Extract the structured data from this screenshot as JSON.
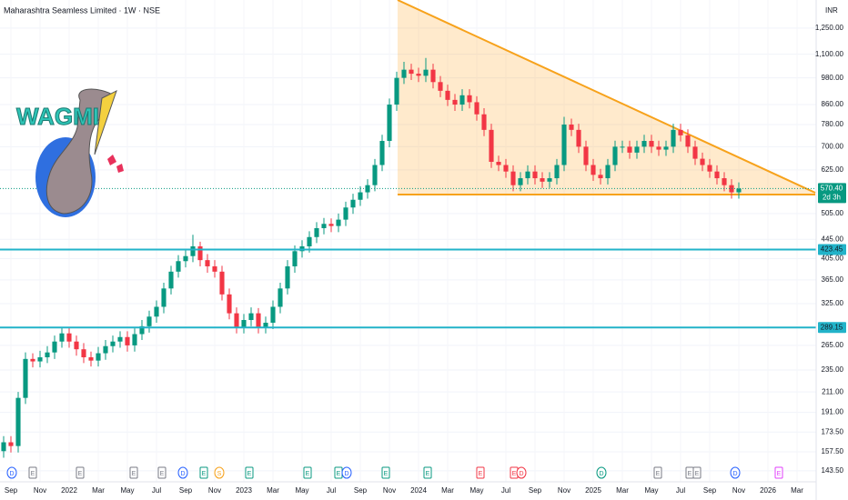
{
  "header": {
    "title": "Maharashtra Seamless Limited · 1W · NSE",
    "currency": "INR"
  },
  "logo": {
    "text": "WAGMI"
  },
  "chart_data": {
    "type": "candlestick",
    "log_scale": true,
    "grid": true,
    "up_color": "#089981",
    "down_color": "#f23645",
    "categories": [
      null,
      "Sep",
      null,
      null,
      null,
      "Nov",
      null,
      null,
      null,
      "2022",
      null,
      null,
      null,
      "Mar",
      null,
      null,
      null,
      "May",
      null,
      null,
      null,
      "Jul",
      null,
      null,
      null,
      "Sep",
      null,
      null,
      null,
      "Nov",
      null,
      null,
      null,
      "2023",
      null,
      null,
      null,
      "Mar",
      null,
      null,
      null,
      "May",
      null,
      null,
      null,
      "Jul",
      null,
      null,
      null,
      "Sep",
      null,
      null,
      null,
      "Nov",
      null,
      null,
      null,
      "2024",
      null,
      null,
      null,
      "Mar",
      null,
      null,
      null,
      "May",
      null,
      null,
      null,
      "Jul",
      null,
      null,
      null,
      "Sep",
      null,
      null,
      null,
      "Nov",
      null,
      null,
      null,
      "2025",
      null,
      null,
      null,
      "Mar",
      null,
      null,
      null,
      "May",
      null,
      null,
      null,
      "Jul",
      null,
      null,
      null,
      "Sep",
      null,
      null,
      null,
      "Nov",
      null,
      null,
      null,
      "2026",
      null,
      null,
      null,
      "Mar",
      null,
      null
    ],
    "open": [
      158,
      165,
      162,
      205,
      248,
      245,
      250,
      256,
      270,
      281,
      270,
      260,
      250,
      246,
      255,
      264,
      270,
      276,
      265,
      280,
      291,
      305,
      320,
      350,
      380,
      400,
      410,
      430,
      402,
      390,
      380,
      340,
      310,
      290,
      300,
      310,
      290,
      296,
      320,
      350,
      390,
      420,
      430,
      450,
      470,
      480,
      475,
      490,
      520,
      540,
      560,
      580,
      640,
      720,
      860,
      980,
      1020,
      1000,
      990,
      1020,
      960,
      920,
      880,
      860,
      900,
      870,
      820,
      760,
      650,
      640,
      620,
      580,
      600,
      620,
      600,
      590,
      600,
      640,
      780,
      760,
      700,
      640,
      610,
      600,
      640,
      700,
      700,
      680,
      700,
      720,
      700,
      690,
      700,
      760,
      740,
      700,
      660,
      640,
      620,
      600,
      580,
      560,
      null,
      null,
      null,
      null,
      null,
      null,
      null,
      null,
      null,
      null
    ],
    "high": [
      170,
      170,
      211,
      256,
      255,
      258,
      264,
      278,
      290,
      289,
      278,
      268,
      257,
      263,
      272,
      278,
      284,
      284,
      288,
      300,
      314,
      330,
      360,
      391,
      412,
      422,
      455,
      440,
      414,
      402,
      391,
      350,
      319,
      309,
      319,
      318,
      305,
      330,
      360,
      402,
      432,
      443,
      463,
      484,
      494,
      493,
      505,
      535,
      556,
      577,
      597,
      659,
      742,
      886,
      1010,
      1060,
      1050,
      1030,
      1080,
      1050,
      989,
      948,
      906,
      927,
      927,
      896,
      845,
      783,
      670,
      659,
      639,
      618,
      639,
      639,
      618,
      618,
      659,
      810,
      803,
      783,
      721,
      659,
      628,
      659,
      721,
      721,
      721,
      721,
      742,
      742,
      721,
      721,
      783,
      783,
      762,
      721,
      680,
      659,
      639,
      618,
      597,
      588,
      null,
      null,
      null,
      null,
      null,
      null,
      null,
      null,
      null,
      null
    ],
    "low": [
      153,
      157,
      157,
      199,
      238,
      238,
      243,
      248,
      262,
      262,
      252,
      243,
      239,
      239,
      247,
      256,
      262,
      257,
      257,
      272,
      282,
      296,
      310,
      340,
      369,
      388,
      398,
      390,
      378,
      369,
      330,
      301,
      281,
      281,
      291,
      281,
      281,
      287,
      310,
      340,
      378,
      407,
      417,
      437,
      456,
      461,
      461,
      475,
      504,
      524,
      543,
      563,
      621,
      698,
      834,
      951,
      970,
      960,
      960,
      931,
      892,
      854,
      834,
      834,
      844,
      795,
      737,
      631,
      621,
      601,
      563,
      563,
      582,
      582,
      572,
      572,
      582,
      621,
      737,
      679,
      621,
      592,
      582,
      582,
      621,
      679,
      660,
      660,
      679,
      679,
      669,
      669,
      679,
      718,
      679,
      640,
      621,
      601,
      582,
      563,
      543,
      543,
      null,
      null,
      null,
      null,
      null,
      null,
      null,
      null,
      null,
      null
    ],
    "close": [
      165,
      162,
      205,
      248,
      245,
      250,
      256,
      270,
      281,
      270,
      260,
      250,
      246,
      255,
      264,
      270,
      276,
      265,
      280,
      291,
      305,
      320,
      350,
      380,
      400,
      410,
      430,
      402,
      390,
      380,
      340,
      310,
      290,
      300,
      310,
      290,
      296,
      320,
      350,
      390,
      420,
      430,
      450,
      470,
      480,
      475,
      490,
      520,
      540,
      560,
      580,
      640,
      720,
      860,
      980,
      1020,
      1000,
      990,
      1020,
      960,
      920,
      880,
      860,
      900,
      870,
      820,
      760,
      650,
      640,
      620,
      580,
      600,
      620,
      600,
      590,
      600,
      640,
      780,
      760,
      700,
      640,
      610,
      600,
      640,
      700,
      700,
      680,
      700,
      720,
      700,
      690,
      700,
      760,
      740,
      700,
      660,
      640,
      620,
      600,
      580,
      560,
      570.4,
      null,
      null,
      null,
      null,
      null,
      null,
      null,
      null,
      null,
      null
    ],
    "ylim": [
      136,
      1434
    ],
    "yticks": [
      {
        "value": 143.5,
        "label": "143.50"
      },
      {
        "value": 157.5,
        "label": "157.50"
      },
      {
        "value": 173.5,
        "label": "173.50"
      },
      {
        "value": 191,
        "label": "191.00"
      },
      {
        "value": 211,
        "label": "211.00"
      },
      {
        "value": 235,
        "label": "235.00"
      },
      {
        "value": 265,
        "label": "265.00"
      },
      {
        "value": 325,
        "label": "325.00"
      },
      {
        "value": 365,
        "label": "365.00"
      },
      {
        "value": 405,
        "label": "405.00"
      },
      {
        "value": 445,
        "label": "445.00"
      },
      {
        "value": 505,
        "label": "505.00"
      },
      {
        "value": 625,
        "label": "625.00"
      },
      {
        "value": 700,
        "label": "700.00"
      },
      {
        "value": 780,
        "label": "780.00"
      },
      {
        "value": 860,
        "label": "860.00"
      },
      {
        "value": 980,
        "label": "980.00"
      },
      {
        "value": 1100,
        "label": "1,100.00"
      },
      {
        "value": 1250,
        "label": "1,250.00"
      }
    ],
    "levels": [
      423.45,
      289.15
    ],
    "level_color": "#22b3c9",
    "last_price": {
      "value": 570.4,
      "label": "570.40",
      "countdown": "2d 3h"
    }
  },
  "events": [
    "D",
    "E",
    "E",
    "E",
    "E",
    "D",
    "E",
    "S",
    "E",
    "E",
    "E",
    "D",
    "E",
    "E",
    "E",
    "E",
    "D",
    "D",
    "E",
    "E",
    "E",
    "D",
    "E",
    "E"
  ]
}
